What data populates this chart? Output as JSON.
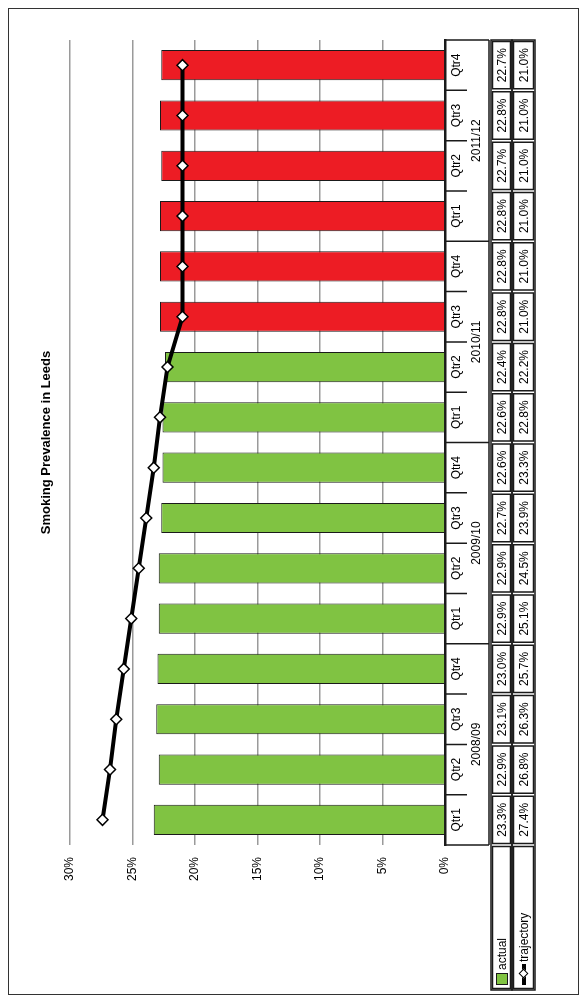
{
  "chart_data": {
    "type": "bar",
    "orientation": "horizontal",
    "title": "Smoking Prevalence in Leeds",
    "categories": [
      "Qtr4",
      "Qtr3",
      "Qtr2",
      "Qtr1",
      "Qtr4",
      "Qtr3",
      "Qtr2",
      "Qtr1",
      "Qtr4",
      "Qtr3",
      "Qtr2",
      "Qtr1",
      "Qtr4",
      "Qtr3",
      "Qtr2",
      "Qtr1"
    ],
    "annotations": [
      "2011/12",
      "2010/11",
      "2009/10",
      "2008/09"
    ],
    "series": [
      {
        "name": "actual",
        "colors": [
          "#ed1c24",
          "#ed1c24",
          "#ed1c24",
          "#ed1c24",
          "#ed1c24",
          "#ed1c24",
          "#80c342",
          "#80c342",
          "#80c342",
          "#80c342",
          "#80c342",
          "#80c342",
          "#80c342",
          "#80c342",
          "#80c342",
          "#80c342"
        ],
        "values": [
          22.7,
          22.8,
          22.7,
          22.8,
          22.8,
          22.8,
          22.4,
          22.6,
          22.6,
          22.7,
          22.9,
          22.9,
          23.0,
          23.1,
          22.9,
          23.3
        ],
        "value_labels": [
          "22.7%",
          "22.8%",
          "22.7%",
          "22.8%",
          "22.8%",
          "22.8%",
          "22.4%",
          "22.6%",
          "22.6%",
          "22.7%",
          "22.9%",
          "22.9%",
          "23.0%",
          "23.1%",
          "22.9%",
          "23.3%"
        ]
      },
      {
        "name": "trajectory",
        "type": "line",
        "color": "#000000",
        "marker": "diamond",
        "values": [
          21.0,
          21.0,
          21.0,
          21.0,
          21.0,
          21.0,
          22.2,
          22.8,
          23.3,
          23.9,
          24.5,
          25.1,
          25.7,
          26.3,
          26.8,
          27.4
        ],
        "value_labels": [
          "21.0%",
          "21.0%",
          "21.0%",
          "21.0%",
          "21.0%",
          "21.0%",
          "22.2%",
          "22.8%",
          "23.3%",
          "23.9%",
          "24.5%",
          "25.1%",
          "25.7%",
          "26.3%",
          "26.8%",
          "27.4%"
        ]
      }
    ],
    "xlim": [
      30,
      0
    ],
    "xticks": [
      {
        "value": 30,
        "label": "30%"
      },
      {
        "value": 25,
        "label": "25%"
      },
      {
        "value": 20,
        "label": "20%"
      },
      {
        "value": 15,
        "label": "15%"
      },
      {
        "value": 10,
        "label": "10%"
      },
      {
        "value": 5,
        "label": "5%"
      },
      {
        "value": 0,
        "label": "0%"
      }
    ],
    "grid": "x",
    "legend": "bottom right"
  }
}
